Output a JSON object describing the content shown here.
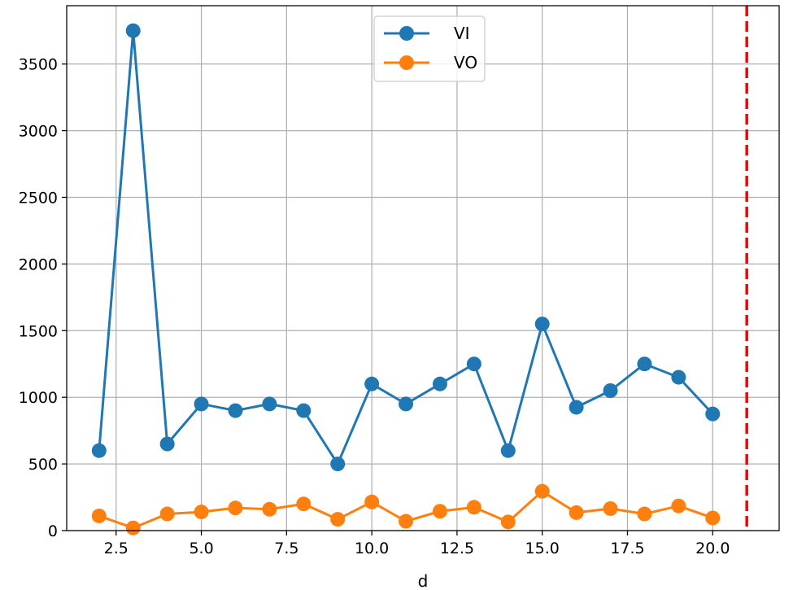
{
  "chart_data": {
    "type": "line",
    "title": "",
    "xlabel": "d",
    "ylabel": "",
    "xlim": [
      1.05,
      21.95
    ],
    "ylim": [
      0,
      3937.5
    ],
    "xticks": [
      2.5,
      5.0,
      7.5,
      10.0,
      12.5,
      15.0,
      17.5,
      20.0
    ],
    "xtick_labels": [
      "2.5",
      "5.0",
      "7.5",
      "10.0",
      "12.5",
      "15.0",
      "17.5",
      "20.0"
    ],
    "yticks": [
      0,
      500,
      1000,
      1500,
      2000,
      2500,
      3000,
      3500
    ],
    "ytick_labels": [
      "0",
      "500",
      "1000",
      "1500",
      "2000",
      "2500",
      "3000",
      "3500"
    ],
    "grid": true,
    "legend_position": "top-center",
    "x": [
      2,
      3,
      4,
      5,
      6,
      7,
      8,
      9,
      10,
      11,
      12,
      13,
      14,
      15,
      16,
      17,
      18,
      19,
      20
    ],
    "series": [
      {
        "name": "VI",
        "color": "#1f77b4",
        "values": [
          600,
          3750,
          650,
          950,
          900,
          950,
          900,
          500,
          1100,
          950,
          1100,
          1250,
          600,
          1550,
          925,
          1050,
          1250,
          1150,
          875
        ]
      },
      {
        "name": "VO",
        "color": "#ff7f0e",
        "values": [
          110,
          20,
          125,
          140,
          170,
          160,
          200,
          85,
          215,
          70,
          145,
          175,
          65,
          295,
          135,
          165,
          125,
          185,
          95
        ]
      }
    ],
    "vline": {
      "x": 21,
      "color": "#ff0000",
      "style": "dashed"
    }
  }
}
